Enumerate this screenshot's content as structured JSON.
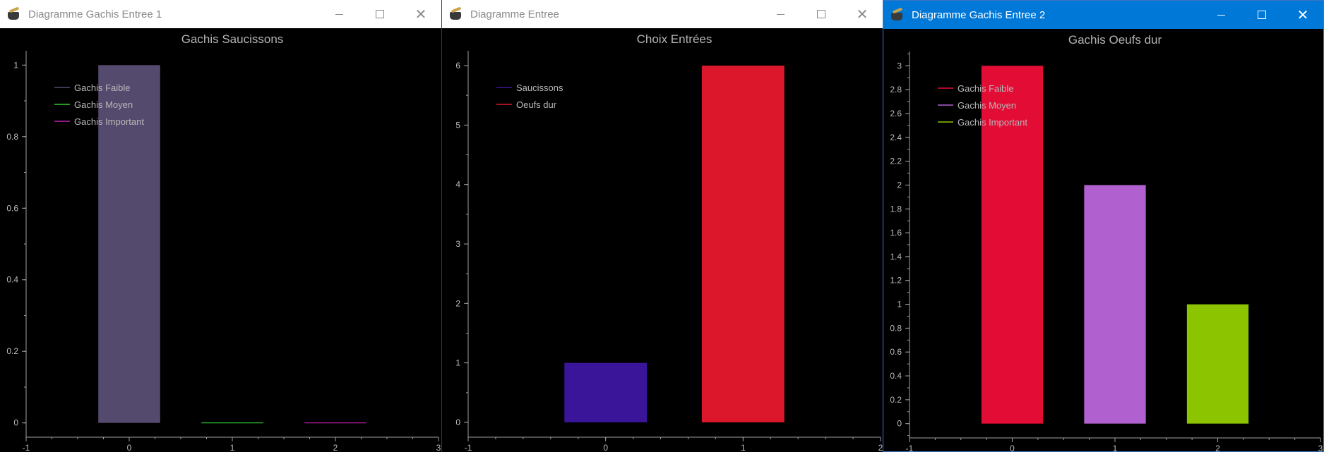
{
  "windows": [
    {
      "title": "Diagramme Gachis Entree 1",
      "active": false,
      "controls": {
        "minimize": "minimize",
        "maximize": "maximize",
        "close": "✕"
      },
      "chart_data": {
        "type": "bar",
        "title": "Gachis Saucissons",
        "xlim": [
          -1,
          3
        ],
        "ylim": [
          -0.04,
          1.04
        ],
        "x_ticks": [
          -1,
          0,
          1,
          2,
          3
        ],
        "y_ticks": [
          0,
          0.2,
          0.4,
          0.6,
          0.8,
          1
        ],
        "y_minor_step": 0.1,
        "x_minor_step": 0.25,
        "bar_width": 0.6,
        "legend_position": "top-left",
        "series": [
          {
            "name": "Gachis Faible",
            "x": 0,
            "value": 1,
            "color": "#544a6e"
          },
          {
            "name": "Gachis Moyen",
            "x": 1,
            "value": 0,
            "color": "#2ecc2e"
          },
          {
            "name": "Gachis Important",
            "x": 2,
            "value": 0,
            "color": "#c020b0"
          }
        ]
      }
    },
    {
      "title": "Diagramme Entree",
      "active": false,
      "controls": {
        "minimize": "minimize",
        "maximize": "maximize",
        "close": "✕"
      },
      "chart_data": {
        "type": "bar",
        "title": "Choix Entrées",
        "xlim": [
          -1,
          2
        ],
        "ylim": [
          -0.25,
          6.25
        ],
        "x_ticks": [
          -1,
          0,
          1,
          2
        ],
        "y_ticks": [
          0,
          1,
          2,
          3,
          4,
          5,
          6
        ],
        "y_minor_step": 0.5,
        "x_minor_step": 0.2,
        "bar_width": 0.6,
        "legend_position": "top-left",
        "series": [
          {
            "name": "Saucissons",
            "x": 0,
            "value": 1,
            "color": "#3a1599"
          },
          {
            "name": "Oeufs dur",
            "x": 1,
            "value": 6,
            "color": "#dc172c"
          }
        ]
      }
    },
    {
      "title": "Diagramme Gachis Entree 2",
      "active": true,
      "controls": {
        "minimize": "minimize",
        "maximize": "maximize",
        "close": "✕"
      },
      "chart_data": {
        "type": "bar",
        "title": "Gachis Oeufs dur",
        "xlim": [
          -1,
          3
        ],
        "ylim": [
          -0.12,
          3.12
        ],
        "x_ticks": [
          -1,
          0,
          1,
          2,
          3
        ],
        "y_ticks": [
          0,
          0.2,
          0.4,
          0.6,
          0.8,
          1,
          1.2,
          1.4,
          1.6,
          1.8,
          2,
          2.2,
          2.4,
          2.6,
          2.8,
          3
        ],
        "y_minor_step": 0.1,
        "x_minor_step": 0.25,
        "bar_width": 0.6,
        "legend_position": "top-left",
        "series": [
          {
            "name": "Gachis Faible",
            "x": 0,
            "value": 3,
            "color": "#e20c35"
          },
          {
            "name": "Gachis Moyen",
            "x": 1,
            "value": 2,
            "color": "#b061cf"
          },
          {
            "name": "Gachis Important",
            "x": 2,
            "value": 1,
            "color": "#8cc500"
          }
        ]
      }
    }
  ]
}
